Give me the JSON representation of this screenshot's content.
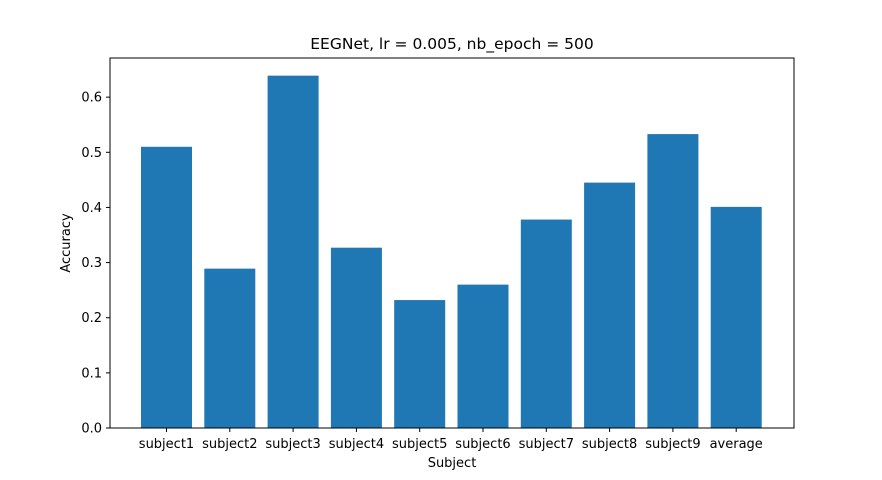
{
  "chart_data": {
    "type": "bar",
    "title": "EEGNet, lr = 0.005, nb_epoch = 500",
    "xlabel": "Subject",
    "ylabel": "Accuracy",
    "categories": [
      "subject1",
      "subject2",
      "subject3",
      "subject4",
      "subject5",
      "subject6",
      "subject7",
      "subject8",
      "subject9",
      "average"
    ],
    "values": [
      0.51,
      0.289,
      0.639,
      0.327,
      0.232,
      0.26,
      0.378,
      0.445,
      0.533,
      0.401
    ],
    "ylim": [
      0,
      0.671
    ],
    "yticks": [
      0.0,
      0.1,
      0.2,
      0.3,
      0.4,
      0.5,
      0.6
    ],
    "ytick_labels": [
      "0.0",
      "0.1",
      "0.2",
      "0.3",
      "0.4",
      "0.5",
      "0.6"
    ],
    "bar_color": "#1f77b4",
    "grid": false,
    "legend": "none"
  }
}
